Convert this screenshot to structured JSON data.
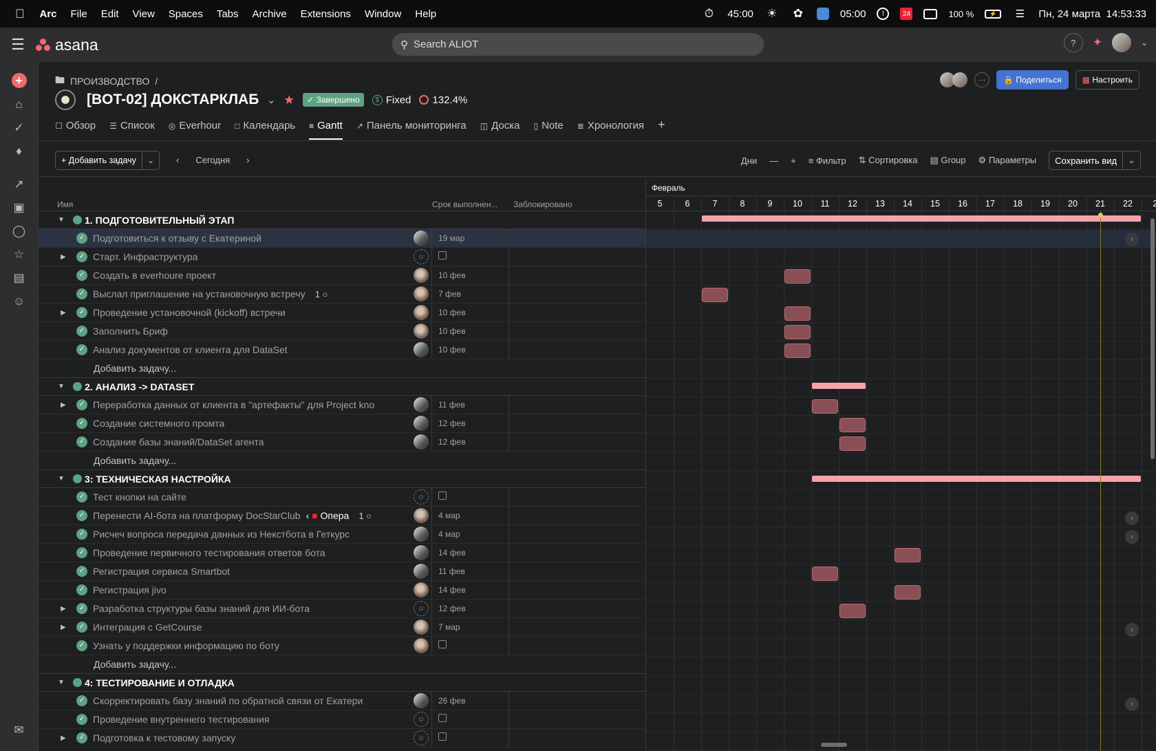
{
  "menubar": {
    "apple_icon": "apple-icon",
    "items": [
      "Arc",
      "File",
      "Edit",
      "View",
      "Spaces",
      "Tabs",
      "Archive",
      "Extensions",
      "Window",
      "Help"
    ],
    "timer1": "45:00",
    "timer2": "05:00",
    "calendar_day": "24",
    "battery": "100 %",
    "datetime": "Пн, 24 марта  14:53:33"
  },
  "topbar": {
    "logo": "asana",
    "search_placeholder": "Search ALIOT",
    "help_label": "?"
  },
  "project": {
    "breadcrumb": "ПРОИЗВОДСТВО",
    "breadcrumb_sep": "/",
    "title": "[BOT-02] ДОКСТАРКЛАБ",
    "status": "Завершено",
    "fixed": "Fixed",
    "percent": "132.4%",
    "share": "Поделиться",
    "customize": "Настроить",
    "more": "···"
  },
  "tabs": [
    {
      "label": "Обзор",
      "icon": "overview-icon"
    },
    {
      "label": "Список",
      "icon": "list-icon"
    },
    {
      "label": "Everhour",
      "icon": "everhour-icon"
    },
    {
      "label": "Календарь",
      "icon": "calendar-icon"
    },
    {
      "label": "Gantt",
      "icon": "gantt-icon",
      "active": true
    },
    {
      "label": "Панель мониторинга",
      "icon": "dashboard-icon"
    },
    {
      "label": "Доска",
      "icon": "board-icon"
    },
    {
      "label": "Note",
      "icon": "note-icon"
    },
    {
      "label": "Хронология",
      "icon": "timeline-icon"
    }
  ],
  "toolbar": {
    "add_task": "Добавить задачу",
    "today": "Сегодня",
    "days": "Дни",
    "filter": "Фильтр",
    "sort": "Сортировка",
    "group": "Group",
    "params": "Параметры",
    "save_view": "Сохранить вид"
  },
  "columns": {
    "name": "Имя",
    "due": "Срок выполнен...",
    "blocked": "Заблокировано"
  },
  "gantt": {
    "month": "Февраль",
    "days": [
      "5",
      "6",
      "7",
      "8",
      "9",
      "10",
      "11",
      "12",
      "13",
      "14",
      "15",
      "16",
      "17",
      "18",
      "19",
      "20",
      "21",
      "22",
      "2"
    ],
    "today_day": "21"
  },
  "rows": [
    {
      "type": "section",
      "title": "1. ПОДГОТОВИТЕЛЬНЫЙ ЭТАП",
      "bar": {
        "start": 7,
        "end": 23
      }
    },
    {
      "type": "task",
      "name": "Подготовиться к отзыву с Екатериной",
      "assignee": "person",
      "due": "19 мар",
      "highlight": true,
      "arrow": true
    },
    {
      "type": "task",
      "name": "Старт. Инфраструктура",
      "expand": true,
      "assignee": "empty",
      "due": "",
      "due_icon": true
    },
    {
      "type": "task",
      "name": " Создать в everhoure проект",
      "assignee": "photo",
      "due": "10 фев",
      "bar": {
        "start": 10,
        "end": 11
      }
    },
    {
      "type": "task",
      "name": "Выслал приглашение на установочную встречу",
      "comments": "1",
      "assignee": "photo",
      "due": "7 фев",
      "bar": {
        "start": 7,
        "end": 8
      }
    },
    {
      "type": "task",
      "name": "Проведение установочной (kickoff) встречи",
      "expand": true,
      "assignee": "photo",
      "due": "10 фев",
      "bar": {
        "start": 10,
        "end": 11
      }
    },
    {
      "type": "task",
      "name": "Заполнить Бриф",
      "assignee": "photo",
      "due": "10 фев",
      "bar": {
        "start": 10,
        "end": 11
      }
    },
    {
      "type": "task",
      "name": "Анализ документов от клиента для DataSet",
      "assignee": "person",
      "due": "10 фев",
      "bar": {
        "start": 10,
        "end": 11
      }
    },
    {
      "type": "add",
      "name": "Добавить задачу..."
    },
    {
      "type": "section",
      "title": "2. АНАЛИЗ -> DATASET",
      "bar": {
        "start": 11,
        "end": 13
      }
    },
    {
      "type": "task",
      "name": "Переработка данных от клиента в \"артефакты\" для Project kno",
      "expand": true,
      "assignee": "person",
      "due": "11 фев",
      "bar": {
        "start": 11,
        "end": 12
      }
    },
    {
      "type": "task",
      "name": "Создание системного промта",
      "assignee": "person",
      "due": "12 фев",
      "bar": {
        "start": 12,
        "end": 13
      }
    },
    {
      "type": "task",
      "name": "Создание  базы знаний/DataSet агента",
      "assignee": "person",
      "due": "12 фев",
      "bar": {
        "start": 12,
        "end": 13
      }
    },
    {
      "type": "add",
      "name": "Добавить задачу..."
    },
    {
      "type": "section",
      "title": "3: ТЕХНИЧЕСКАЯ НАСТРОЙКА",
      "bar": {
        "start": 11,
        "end": 23
      }
    },
    {
      "type": "task",
      "name": "Тест кнопки на сайте",
      "assignee": "empty",
      "due": "",
      "due_icon": true
    },
    {
      "type": "task",
      "name": "Перенести AI-бота на платформу DocStarClub",
      "tag": "Опера",
      "comments": "1",
      "assignee": "photo",
      "due": "4 мар",
      "arrow": true
    },
    {
      "type": "task",
      "name": "Рисчеч вопроса передача данных из Некстбота в Геткурс",
      "assignee": "person",
      "due": "4 мар",
      "arrow": true
    },
    {
      "type": "task",
      "name": "Проведение первичного тестирования ответов бота",
      "assignee": "person",
      "due": "14 фев",
      "bar": {
        "start": 14,
        "end": 15
      }
    },
    {
      "type": "task",
      "name": "Регистрация сервиса Smartbot",
      "assignee": "person",
      "due": "11 фев",
      "bar": {
        "start": 11,
        "end": 12
      }
    },
    {
      "type": "task",
      "name": "Регистрация  jivo",
      "assignee": "photo",
      "due": "14 фев",
      "bar": {
        "start": 14,
        "end": 15
      }
    },
    {
      "type": "task",
      "name": "Разработка структуры базы знаний для ИИ-бота",
      "expand": true,
      "assignee": "empty",
      "due": "12 фев",
      "bar": {
        "start": 12,
        "end": 13
      }
    },
    {
      "type": "task",
      "name": "Интеграция с GetCourse",
      "expand": true,
      "assignee": "photo",
      "due": "7 мар",
      "arrow": true
    },
    {
      "type": "task",
      "name": "Узнать у поддержки информацию по боту",
      "assignee": "photo",
      "due": "",
      "due_icon": true
    },
    {
      "type": "add",
      "name": "Добавить задачу..."
    },
    {
      "type": "section",
      "title": "4: ТЕСТИРОВАНИЕ И ОТЛАДКА"
    },
    {
      "type": "task",
      "name": "Скорректировать базу знаний по обратной связи от Екатери",
      "assignee": "person",
      "due": "26 фев",
      "arrow": true
    },
    {
      "type": "task",
      "name": "Проведение внутреннего тестирования",
      "assignee": "empty",
      "due": "",
      "due_icon": true
    },
    {
      "type": "task",
      "name": "Подготовка к тестовому запуску",
      "expand": true,
      "assignee": "empty",
      "due": "",
      "due_icon": true
    }
  ]
}
